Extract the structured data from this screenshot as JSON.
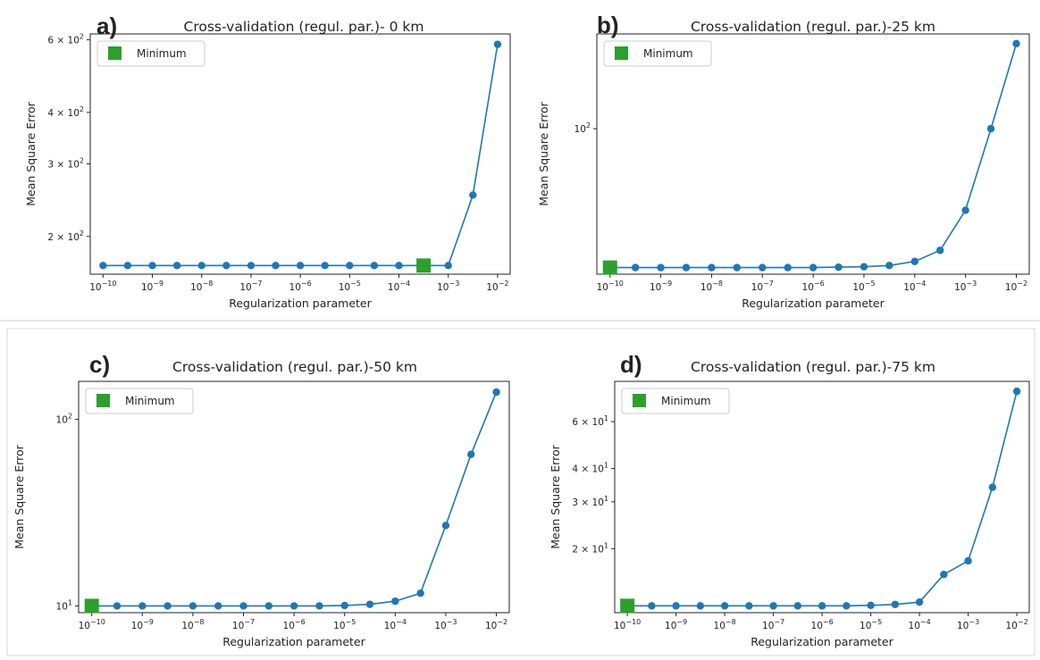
{
  "chart_data": [
    {
      "panel_letter": "a)",
      "type": "line",
      "title": "Cross-validation (regul. par.)- 0 km",
      "xlabel": "Regularization parameter",
      "ylabel": "Mean Square Error",
      "xscale": "log",
      "yscale": "log",
      "xlim": [
        5.5e-11,
        0.018
      ],
      "ylim": [
        162,
        620
      ],
      "x_ticks": [
        1e-10,
        1e-09,
        1e-08,
        1e-07,
        1e-06,
        1e-05,
        0.0001,
        0.001,
        0.01
      ],
      "x_tick_labels": [
        {
          "base": "10",
          "exp": "−10"
        },
        {
          "base": "10",
          "exp": "−9"
        },
        {
          "base": "10",
          "exp": "−8"
        },
        {
          "base": "10",
          "exp": "−7"
        },
        {
          "base": "10",
          "exp": "−6"
        },
        {
          "base": "10",
          "exp": "−5"
        },
        {
          "base": "10",
          "exp": "−4"
        },
        {
          "base": "10",
          "exp": "−3"
        },
        {
          "base": "10",
          "exp": "−2"
        }
      ],
      "y_ticks": [
        200,
        300,
        400,
        600
      ],
      "y_tick_labels": [
        {
          "base": "2 × 10",
          "exp": "2"
        },
        {
          "base": "3 × 10",
          "exp": "2"
        },
        {
          "base": "4 × 10",
          "exp": "2"
        },
        {
          "base": "6 × 10",
          "exp": "2"
        }
      ],
      "series": [
        {
          "x": [
            1e-10,
            3.16e-10,
            1e-09,
            3.16e-09,
            1e-08,
            3.16e-08,
            1e-07,
            3.16e-07,
            1e-06,
            3.16e-06,
            1e-05,
            3.16e-05,
            0.0001,
            0.000316,
            0.001,
            0.00316,
            0.01
          ],
          "y": [
            170,
            170,
            170,
            170,
            170,
            170,
            170,
            170,
            170,
            170,
            170,
            170,
            170,
            170,
            170,
            252,
            585
          ]
        }
      ],
      "minimum": {
        "x": 0.000316,
        "y": 170
      },
      "legend": {
        "label": "Minimum",
        "position": "upper left"
      },
      "colors": {
        "line": "#1f77b4",
        "minimum": "#2ca02c"
      }
    },
    {
      "panel_letter": "b)",
      "type": "line",
      "title": "Cross-validation (regul. par.)-25 km",
      "xlabel": "Regularization parameter",
      "ylabel": "Mean Square Error",
      "xscale": "log",
      "yscale": "log",
      "xlim": [
        5.5e-11,
        0.018
      ],
      "ylim": [
        19.5,
        290
      ],
      "x_ticks": [
        1e-10,
        1e-09,
        1e-08,
        1e-07,
        1e-06,
        1e-05,
        0.0001,
        0.001,
        0.01
      ],
      "x_tick_labels": [
        {
          "base": "10",
          "exp": "−10"
        },
        {
          "base": "10",
          "exp": "−9"
        },
        {
          "base": "10",
          "exp": "−8"
        },
        {
          "base": "10",
          "exp": "−7"
        },
        {
          "base": "10",
          "exp": "−6"
        },
        {
          "base": "10",
          "exp": "−5"
        },
        {
          "base": "10",
          "exp": "−4"
        },
        {
          "base": "10",
          "exp": "−3"
        },
        {
          "base": "10",
          "exp": "−2"
        }
      ],
      "y_ticks": [
        100
      ],
      "y_tick_labels": [
        {
          "base": "10",
          "exp": "2"
        }
      ],
      "series": [
        {
          "x": [
            1e-10,
            3.16e-10,
            1e-09,
            3.16e-09,
            1e-08,
            3.16e-08,
            1e-07,
            3.16e-07,
            1e-06,
            3.16e-06,
            1e-05,
            3.16e-05,
            0.0001,
            0.000316,
            0.001,
            0.00316,
            0.01
          ],
          "y": [
            21,
            21,
            21,
            21,
            21,
            21,
            21,
            21,
            21,
            21.1,
            21.2,
            21.5,
            22.5,
            25.5,
            40,
            100,
            260
          ]
        }
      ],
      "minimum": {
        "x": 1e-10,
        "y": 21
      },
      "legend": {
        "label": "Minimum",
        "position": "upper left"
      },
      "colors": {
        "line": "#1f77b4",
        "minimum": "#2ca02c"
      }
    },
    {
      "panel_letter": "c)",
      "type": "line",
      "title": "Cross-validation (regul. par.)-50 km",
      "xlabel": "Regularization parameter",
      "ylabel": "Mean Square Error",
      "xscale": "log",
      "yscale": "log",
      "xlim": [
        5.5e-11,
        0.018
      ],
      "ylim": [
        9.2,
        160
      ],
      "x_ticks": [
        1e-10,
        1e-09,
        1e-08,
        1e-07,
        1e-06,
        1e-05,
        0.0001,
        0.001,
        0.01
      ],
      "x_tick_labels": [
        {
          "base": "10",
          "exp": "−10"
        },
        {
          "base": "10",
          "exp": "−9"
        },
        {
          "base": "10",
          "exp": "−8"
        },
        {
          "base": "10",
          "exp": "−7"
        },
        {
          "base": "10",
          "exp": "−6"
        },
        {
          "base": "10",
          "exp": "−5"
        },
        {
          "base": "10",
          "exp": "−4"
        },
        {
          "base": "10",
          "exp": "−3"
        },
        {
          "base": "10",
          "exp": "−2"
        }
      ],
      "y_ticks": [
        10,
        100
      ],
      "y_tick_labels": [
        {
          "base": "10",
          "exp": "1"
        },
        {
          "base": "10",
          "exp": "2"
        }
      ],
      "series": [
        {
          "x": [
            1e-10,
            3.16e-10,
            1e-09,
            3.16e-09,
            1e-08,
            3.16e-08,
            1e-07,
            3.16e-07,
            1e-06,
            3.16e-06,
            1e-05,
            3.16e-05,
            0.0001,
            0.000316,
            0.001,
            0.00316,
            0.01
          ],
          "y": [
            10,
            10,
            10,
            10,
            10,
            10,
            10,
            10,
            10,
            10,
            10.05,
            10.2,
            10.6,
            11.7,
            27,
            65,
            140
          ]
        }
      ],
      "minimum": {
        "x": 1e-10,
        "y": 10
      },
      "legend": {
        "label": "Minimum",
        "position": "upper left"
      },
      "colors": {
        "line": "#1f77b4",
        "minimum": "#2ca02c"
      }
    },
    {
      "panel_letter": "d)",
      "type": "line",
      "title": "Cross-validation (regul. par.)-75 km",
      "xlabel": "Regularization parameter",
      "ylabel": "Mean Square Error",
      "xscale": "log",
      "yscale": "log",
      "xlim": [
        5.5e-11,
        0.018
      ],
      "ylim": [
        11.5,
        85
      ],
      "x_ticks": [
        1e-10,
        1e-09,
        1e-08,
        1e-07,
        1e-06,
        1e-05,
        0.0001,
        0.001,
        0.01
      ],
      "x_tick_labels": [
        {
          "base": "10",
          "exp": "−10"
        },
        {
          "base": "10",
          "exp": "−9"
        },
        {
          "base": "10",
          "exp": "−8"
        },
        {
          "base": "10",
          "exp": "−7"
        },
        {
          "base": "10",
          "exp": "−6"
        },
        {
          "base": "10",
          "exp": "−5"
        },
        {
          "base": "10",
          "exp": "−4"
        },
        {
          "base": "10",
          "exp": "−3"
        },
        {
          "base": "10",
          "exp": "−2"
        }
      ],
      "y_ticks": [
        20,
        30,
        40,
        60
      ],
      "y_tick_labels": [
        {
          "base": "2 × 10",
          "exp": "1"
        },
        {
          "base": "3 × 10",
          "exp": "1"
        },
        {
          "base": "4 × 10",
          "exp": "1"
        },
        {
          "base": "6 × 10",
          "exp": "1"
        }
      ],
      "series": [
        {
          "x": [
            1e-10,
            3.16e-10,
            1e-09,
            3.16e-09,
            1e-08,
            3.16e-08,
            1e-07,
            3.16e-07,
            1e-06,
            3.16e-06,
            1e-05,
            3.16e-05,
            0.0001,
            0.000316,
            0.001,
            0.00316,
            0.01
          ],
          "y": [
            12.2,
            12.2,
            12.2,
            12.2,
            12.2,
            12.2,
            12.2,
            12.2,
            12.2,
            12.2,
            12.25,
            12.35,
            12.6,
            16,
            18,
            34,
            78
          ]
        }
      ],
      "minimum": {
        "x": 1e-10,
        "y": 12.2
      },
      "legend": {
        "label": "Minimum",
        "position": "upper left"
      },
      "colors": {
        "line": "#1f77b4",
        "minimum": "#2ca02c"
      }
    }
  ]
}
